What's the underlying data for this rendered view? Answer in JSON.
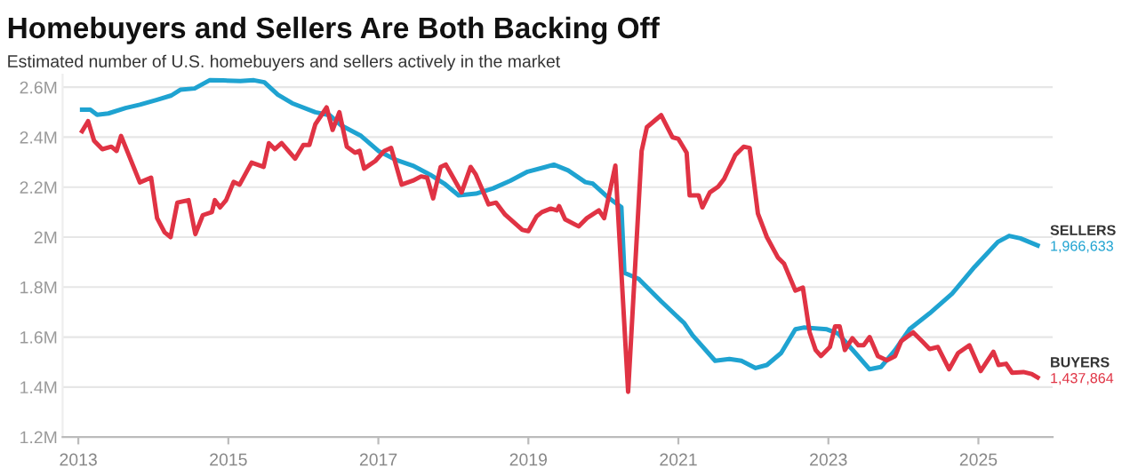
{
  "chart_data": {
    "type": "line",
    "title": "Homebuyers and Sellers Are Both Backing Off",
    "subtitle": "Estimated number of U.S. homebuyers and sellers actively in the market",
    "xlim": [
      2012.79,
      2025.99
    ],
    "xticks": [
      2013,
      2015,
      2017,
      2019,
      2021,
      2023,
      2025
    ],
    "ylim": [
      1200000,
      2650000
    ],
    "yticks": [
      {
        "value": 1200000,
        "label": "1.2M"
      },
      {
        "value": 1400000,
        "label": "1.4M"
      },
      {
        "value": 1600000,
        "label": "1.6M"
      },
      {
        "value": 1800000,
        "label": "1.8M"
      },
      {
        "value": 2000000,
        "label": "2M"
      },
      {
        "value": 2200000,
        "label": "2.2M"
      },
      {
        "value": 2400000,
        "label": "2.4M"
      },
      {
        "value": 2600000,
        "label": "2.6M"
      }
    ],
    "grid": "y",
    "legend": false,
    "marker": "none",
    "line_style": "solid",
    "series": [
      {
        "name": "SELLERS",
        "color": "#1fa3d1",
        "x": [
          2013.05,
          2013.16,
          2013.25,
          2013.4,
          2013.63,
          2013.82,
          2014.05,
          2014.24,
          2014.36,
          2014.55,
          2014.75,
          2014.93,
          2015.16,
          2015.34,
          2015.48,
          2015.66,
          2015.85,
          2016.16,
          2016.35,
          2016.5,
          2016.77,
          2017.0,
          2017.23,
          2017.46,
          2017.69,
          2017.88,
          2018.07,
          2018.3,
          2018.53,
          2018.76,
          2018.99,
          2019.22,
          2019.34,
          2019.53,
          2019.76,
          2019.86,
          2020.05,
          2020.24,
          2020.28,
          2020.47,
          2020.77,
          2021.08,
          2021.19,
          2021.49,
          2021.68,
          2021.84,
          2022.03,
          2022.18,
          2022.37,
          2022.56,
          2022.67,
          2022.98,
          2023.13,
          2023.36,
          2023.55,
          2023.7,
          2023.89,
          2024.08,
          2024.35,
          2024.65,
          2024.95,
          2025.26,
          2025.41,
          2025.56,
          2025.79
        ],
        "values": [
          2510000,
          2510000,
          2490000,
          2495000,
          2517000,
          2530000,
          2550000,
          2567000,
          2590000,
          2595000,
          2628000,
          2627000,
          2625000,
          2628000,
          2620000,
          2570000,
          2536000,
          2500000,
          2488000,
          2448000,
          2405000,
          2345000,
          2310000,
          2286000,
          2250000,
          2214000,
          2167000,
          2174000,
          2195000,
          2226000,
          2262000,
          2280000,
          2290000,
          2267000,
          2220000,
          2214000,
          2162000,
          2120000,
          1857000,
          1833000,
          1743000,
          1655000,
          1607000,
          1505000,
          1512000,
          1505000,
          1476000,
          1488000,
          1536000,
          1631000,
          1638000,
          1631000,
          1614000,
          1536000,
          1471000,
          1480000,
          1548000,
          1631000,
          1695000,
          1774000,
          1881000,
          1981000,
          2005000,
          1995000,
          1966633
        ],
        "value_labels": [
          null,
          null,
          null,
          null,
          null,
          null,
          null,
          null,
          null,
          null,
          null,
          null,
          null,
          null,
          null,
          null,
          null,
          null,
          null,
          null,
          null,
          null,
          null,
          null,
          null,
          null,
          null,
          null,
          null,
          null,
          null,
          null,
          null,
          null,
          null,
          null,
          null,
          null,
          null,
          null,
          null,
          null,
          null,
          null,
          null,
          null,
          null,
          null,
          null,
          null,
          null,
          null,
          null,
          null,
          null,
          null,
          null,
          null,
          null,
          null,
          null,
          null,
          null,
          null,
          "1,966,633"
        ]
      },
      {
        "name": "BUYERS",
        "color": "#e03344",
        "x": [
          2013.05,
          2013.13,
          2013.21,
          2013.32,
          2013.44,
          2013.51,
          2013.57,
          2013.82,
          2013.97,
          2014.05,
          2014.15,
          2014.23,
          2014.32,
          2014.47,
          2014.56,
          2014.66,
          2014.78,
          2014.82,
          2014.89,
          2014.97,
          2015.07,
          2015.15,
          2015.31,
          2015.47,
          2015.54,
          2015.62,
          2015.71,
          2015.89,
          2016.0,
          2016.08,
          2016.16,
          2016.31,
          2016.39,
          2016.48,
          2016.58,
          2016.69,
          2016.75,
          2016.81,
          2016.96,
          2017.08,
          2017.17,
          2017.31,
          2017.46,
          2017.57,
          2017.65,
          2017.73,
          2017.83,
          2017.9,
          2018.11,
          2018.23,
          2018.3,
          2018.47,
          2018.57,
          2018.69,
          2018.92,
          2019.0,
          2019.11,
          2019.18,
          2019.3,
          2019.38,
          2019.41,
          2019.49,
          2019.67,
          2019.78,
          2019.94,
          2020.01,
          2020.16,
          2020.33,
          2020.51,
          2020.58,
          2020.77,
          2020.92,
          2021.0,
          2021.11,
          2021.15,
          2021.27,
          2021.32,
          2021.42,
          2021.53,
          2021.61,
          2021.76,
          2021.87,
          2021.95,
          2022.06,
          2022.18,
          2022.33,
          2022.41,
          2022.56,
          2022.66,
          2022.75,
          2022.83,
          2022.9,
          2023.02,
          2023.09,
          2023.15,
          2023.22,
          2023.32,
          2023.4,
          2023.47,
          2023.55,
          2023.66,
          2023.78,
          2023.89,
          2023.97,
          2024.13,
          2024.25,
          2024.35,
          2024.46,
          2024.61,
          2024.73,
          2024.88,
          2025.03,
          2025.2,
          2025.27,
          2025.37,
          2025.45,
          2025.6,
          2025.71,
          2025.79
        ],
        "values": [
          2424000,
          2464000,
          2386000,
          2352000,
          2362000,
          2345000,
          2405000,
          2219000,
          2238000,
          2076000,
          2019000,
          2000000,
          2138000,
          2148000,
          2012000,
          2088000,
          2100000,
          2148000,
          2119000,
          2148000,
          2221000,
          2210000,
          2298000,
          2281000,
          2376000,
          2352000,
          2376000,
          2314000,
          2369000,
          2369000,
          2452000,
          2519000,
          2429000,
          2500000,
          2362000,
          2338000,
          2345000,
          2274000,
          2305000,
          2345000,
          2357000,
          2210000,
          2226000,
          2243000,
          2238000,
          2155000,
          2281000,
          2290000,
          2179000,
          2281000,
          2250000,
          2131000,
          2138000,
          2090000,
          2029000,
          2024000,
          2083000,
          2100000,
          2114000,
          2107000,
          2124000,
          2071000,
          2043000,
          2076000,
          2107000,
          2076000,
          2286000,
          1381000,
          2345000,
          2440000,
          2488000,
          2400000,
          2393000,
          2338000,
          2167000,
          2167000,
          2119000,
          2179000,
          2202000,
          2233000,
          2329000,
          2362000,
          2357000,
          2095000,
          2000000,
          1917000,
          1893000,
          1786000,
          1798000,
          1619000,
          1548000,
          1524000,
          1560000,
          1643000,
          1643000,
          1548000,
          1595000,
          1567000,
          1567000,
          1600000,
          1524000,
          1507000,
          1524000,
          1583000,
          1619000,
          1583000,
          1552000,
          1560000,
          1471000,
          1536000,
          1567000,
          1464000,
          1541000,
          1488000,
          1493000,
          1457000,
          1460000,
          1452000,
          1437864
        ],
        "value_labels": [
          null,
          null,
          null,
          null,
          null,
          null,
          null,
          null,
          null,
          null,
          null,
          null,
          null,
          null,
          null,
          null,
          null,
          null,
          null,
          null,
          null,
          null,
          null,
          null,
          null,
          null,
          null,
          null,
          null,
          null,
          null,
          null,
          null,
          null,
          null,
          null,
          null,
          null,
          null,
          null,
          null,
          null,
          null,
          null,
          null,
          null,
          null,
          null,
          null,
          null,
          null,
          null,
          null,
          null,
          null,
          null,
          null,
          null,
          null,
          null,
          null,
          null,
          null,
          null,
          null,
          null,
          null,
          null,
          null,
          null,
          null,
          null,
          null,
          null,
          null,
          null,
          null,
          null,
          null,
          null,
          null,
          null,
          null,
          null,
          null,
          null,
          null,
          null,
          null,
          null,
          null,
          null,
          null,
          null,
          null,
          null,
          null,
          null,
          null,
          null,
          null,
          null,
          null,
          null,
          null,
          null,
          null,
          null,
          null,
          null,
          null,
          null,
          null,
          null,
          null,
          null,
          null,
          null,
          "1,437,864"
        ]
      }
    ]
  }
}
